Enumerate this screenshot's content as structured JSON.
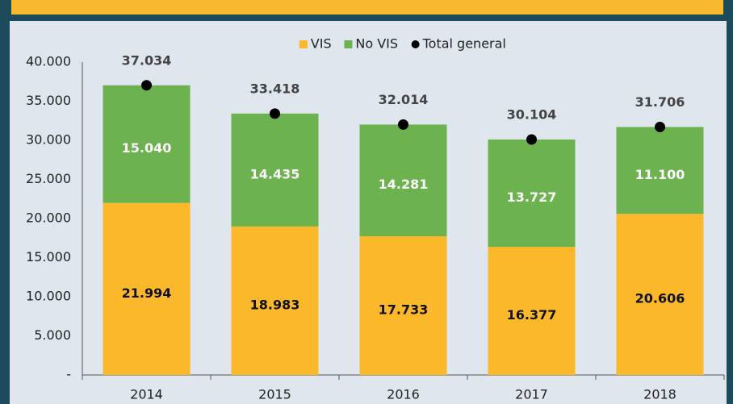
{
  "chart_data": {
    "type": "bar",
    "stacked": true,
    "categories": [
      "2014",
      "2015",
      "2016",
      "2017",
      "2018"
    ],
    "series": [
      {
        "name": "VIS",
        "type": "bar",
        "color": "#fbb82b",
        "label_color": "#111111",
        "values": [
          21994,
          18983,
          17733,
          16377,
          20606
        ],
        "value_labels": [
          "21.994",
          "18.983",
          "17.733",
          "16.377",
          "20.606"
        ]
      },
      {
        "name": "No VIS",
        "type": "bar",
        "color": "#6cb24f",
        "label_color": "#ffffff",
        "values": [
          15040,
          14435,
          14281,
          13727,
          11100
        ],
        "value_labels": [
          "15.040",
          "14.435",
          "14.281",
          "13.727",
          "11.100"
        ]
      },
      {
        "name": "Total general",
        "type": "scatter",
        "color": "#000000",
        "label_color": "#444444",
        "values": [
          37034,
          33418,
          32014,
          30104,
          31706
        ],
        "value_labels": [
          "37.034",
          "33.418",
          "32.014",
          "30.104",
          "31.706"
        ]
      }
    ],
    "ylim": [
      0,
      40000
    ],
    "yticks": [
      {
        "value": 0,
        "label": "-"
      },
      {
        "value": 5000,
        "label": "5.000"
      },
      {
        "value": 10000,
        "label": "10.000"
      },
      {
        "value": 15000,
        "label": "15.000"
      },
      {
        "value": 20000,
        "label": "20.000"
      },
      {
        "value": 25000,
        "label": "25.000"
      },
      {
        "value": 30000,
        "label": "30.000"
      },
      {
        "value": 35000,
        "label": "35.000"
      },
      {
        "value": 40000,
        "label": "40.000"
      }
    ],
    "grid": false,
    "legend": "top"
  }
}
